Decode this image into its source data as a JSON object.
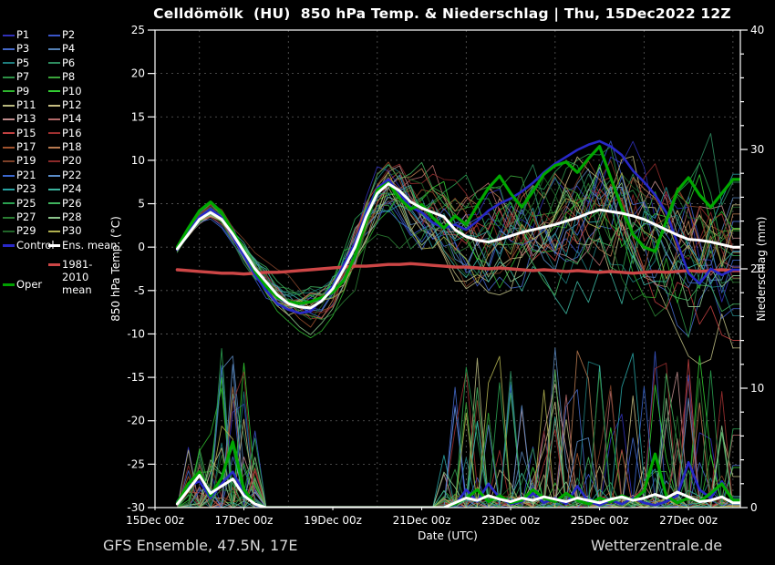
{
  "title": "Celldömölk  (HU)  850 hPa Temp. & Niederschlag | Thu, 15Dec2022 12Z",
  "footer": {
    "left": "GFS Ensemble, 47.5N, 17E",
    "right": "Wetterzentrale.de"
  },
  "legend": {
    "members": [
      {
        "label": "P1",
        "color": "#3030b8"
      },
      {
        "label": "P2",
        "color": "#3a55c8"
      },
      {
        "label": "P3",
        "color": "#4468c8"
      },
      {
        "label": "P4",
        "color": "#5480b4"
      },
      {
        "label": "P5",
        "color": "#1e7d7d"
      },
      {
        "label": "P6",
        "color": "#2e8c5f"
      },
      {
        "label": "P7",
        "color": "#2d9146"
      },
      {
        "label": "P8",
        "color": "#3aa43a"
      },
      {
        "label": "P9",
        "color": "#2eb42e"
      },
      {
        "label": "P10",
        "color": "#32cd32"
      },
      {
        "label": "P11",
        "color": "#b8b87e"
      },
      {
        "label": "P12",
        "color": "#c7bd82"
      },
      {
        "label": "P13",
        "color": "#c08c8c"
      },
      {
        "label": "P14",
        "color": "#b46a6a"
      },
      {
        "label": "P15",
        "color": "#c04040"
      },
      {
        "label": "P16",
        "color": "#9e3030"
      },
      {
        "label": "P17",
        "color": "#a0522d"
      },
      {
        "label": "P18",
        "color": "#b87a50"
      },
      {
        "label": "P19",
        "color": "#7d4028"
      },
      {
        "label": "P20",
        "color": "#8c2a2a"
      },
      {
        "label": "P21",
        "color": "#3a66cc"
      },
      {
        "label": "P22",
        "color": "#5a8cc8"
      },
      {
        "label": "P23",
        "color": "#28a2a2"
      },
      {
        "label": "P24",
        "color": "#3cb49e"
      },
      {
        "label": "P25",
        "color": "#2aa050"
      },
      {
        "label": "P26",
        "color": "#40b45e"
      },
      {
        "label": "P27",
        "color": "#2a7d32"
      },
      {
        "label": "P28",
        "color": "#8cc48c"
      },
      {
        "label": "P29",
        "color": "#206428"
      },
      {
        "label": "P30",
        "color": "#b0b050"
      }
    ],
    "control": {
      "label": "Control",
      "color": "#2828c8"
    },
    "ens_mean": {
      "label": "Ens. mean",
      "color": "#ffffff"
    },
    "oper": {
      "label": "Oper",
      "color": "#00a000"
    },
    "clim": {
      "label": "1981-2010 mean",
      "color": "#cd4646"
    }
  },
  "chart_data": {
    "type": "line",
    "title": "Celldömölk  (HU)  850 hPa Temp. & Niederschlag | Thu, 15Dec2022 12Z",
    "xlabel": "Date (UTC)",
    "ylabel_left": "850 hPa Temp. (°C)",
    "ylabel_right": "Niederschlag (mm)",
    "x_axis": {
      "tick_labels": [
        "15Dec 00z",
        "17Dec 00z",
        "19Dec 00z",
        "21Dec 00z",
        "23Dec 00z",
        "25Dec 00z",
        "27Dec 00z"
      ],
      "tick_hours": [
        0,
        48,
        96,
        144,
        192,
        240,
        288
      ],
      "grid_hours": [
        24,
        72,
        120,
        168,
        216,
        264,
        312
      ],
      "range_hours": [
        0,
        316
      ]
    },
    "y_left": {
      "ticks": [
        25,
        20,
        15,
        10,
        5,
        0,
        -5,
        -10,
        -15,
        -20,
        -25,
        -30
      ],
      "range": [
        -30,
        25
      ],
      "grid_ticks": [
        20,
        15,
        10,
        5,
        0,
        -5,
        -10,
        -15,
        -20,
        -25
      ]
    },
    "y_right": {
      "ticks": [
        0,
        10,
        20,
        30,
        40
      ],
      "minor_step": 2,
      "range": [
        0,
        40
      ]
    },
    "time_hours": [
      12,
      18,
      24,
      30,
      36,
      42,
      48,
      54,
      60,
      66,
      72,
      78,
      84,
      90,
      96,
      102,
      108,
      114,
      120,
      126,
      132,
      138,
      144,
      150,
      156,
      162,
      168,
      174,
      180,
      186,
      192,
      198,
      204,
      210,
      216,
      222,
      228,
      234,
      240,
      246,
      252,
      258,
      264,
      270,
      276,
      282,
      288,
      294,
      300,
      306,
      312
    ],
    "series": [
      {
        "name": "Ens. mean",
        "color": "#ffffff",
        "width": 3,
        "temp": [
          -0.2,
          1.5,
          3.2,
          4.0,
          3.2,
          1.5,
          -0.5,
          -2.5,
          -4.0,
          -5.5,
          -6.5,
          -6.9,
          -7.0,
          -6.2,
          -4.8,
          -2.5,
          0.0,
          3.5,
          6.2,
          7.3,
          6.5,
          5.2,
          4.5,
          4.0,
          3.5,
          2.0,
          1.2,
          0.8,
          0.6,
          0.9,
          1.3,
          1.7,
          2.0,
          2.3,
          2.6,
          3.0,
          3.4,
          3.9,
          4.3,
          4.1,
          3.9,
          3.6,
          3.2,
          2.6,
          2.0,
          1.4,
          0.9,
          0.8,
          0.6,
          0.3,
          0.0
        ],
        "precip": [
          0.3,
          1.5,
          2.7,
          1.2,
          1.8,
          2.4,
          1.0,
          0.3,
          0,
          0,
          0,
          0,
          0,
          0,
          0,
          0,
          0,
          0,
          0,
          0,
          0,
          0,
          0,
          0,
          0,
          0.4,
          0.8,
          0.6,
          1.0,
          0.7,
          0.5,
          0.8,
          0.6,
          0.9,
          0.7,
          0.5,
          0.8,
          0.6,
          0.4,
          0.7,
          0.9,
          0.6,
          0.8,
          1.1,
          0.8,
          1.3,
          0.9,
          0.5,
          0.6,
          0.9,
          0.4
        ]
      },
      {
        "name": "Control",
        "color": "#2828c8",
        "width": 2.6,
        "temp": [
          -0.3,
          1.8,
          3.5,
          4.4,
          3.4,
          1.2,
          -1.0,
          -3.2,
          -5.0,
          -6.5,
          -7.2,
          -7.6,
          -7.4,
          -6.0,
          -4.5,
          -2.0,
          0.5,
          4.0,
          6.8,
          7.8,
          6.2,
          4.6,
          4.0,
          2.8,
          2.2,
          2.6,
          2.0,
          3.0,
          4.2,
          5.0,
          5.6,
          6.4,
          7.4,
          8.6,
          9.6,
          10.4,
          11.2,
          11.8,
          12.2,
          11.6,
          10.6,
          8.8,
          7.5,
          6.0,
          4.0,
          0.5,
          -3.0,
          -4.2,
          -2.5,
          -3.2,
          -2.6
        ],
        "precip": [
          0.5,
          1.8,
          2.2,
          0.8,
          2.0,
          3.0,
          1.2,
          0.2,
          0,
          0,
          0,
          0,
          0,
          0,
          0,
          0,
          0,
          0,
          0,
          0,
          0,
          0,
          0,
          0,
          0,
          0.2,
          1.5,
          0.5,
          2.0,
          0.8,
          0.3,
          0.5,
          1.2,
          0.4,
          0.8,
          0.3,
          1.8,
          0.5,
          0.2,
          0.6,
          0.3,
          0.8,
          0.4,
          0.2,
          0.5,
          1.0,
          3.8,
          1.5,
          0.8,
          2.2,
          0.5
        ]
      },
      {
        "name": "Oper",
        "color": "#00a800",
        "width": 3.2,
        "temp": [
          0.0,
          2.2,
          4.2,
          5.2,
          4.0,
          1.8,
          -0.3,
          -2.8,
          -4.5,
          -5.8,
          -6.3,
          -6.5,
          -6.3,
          -5.8,
          -5.2,
          -3.8,
          -1.0,
          3.0,
          6.6,
          7.4,
          5.6,
          4.4,
          4.9,
          3.4,
          2.2,
          3.6,
          2.6,
          4.8,
          6.8,
          8.2,
          6.2,
          4.6,
          6.4,
          8.4,
          9.4,
          9.8,
          8.6,
          10.2,
          11.6,
          8.0,
          4.5,
          1.5,
          0.0,
          -0.5,
          3.0,
          6.5,
          8.0,
          6.0,
          4.6,
          6.2,
          7.8
        ],
        "precip": [
          0.4,
          2.0,
          3.0,
          1.0,
          2.5,
          5.5,
          1.5,
          0.3,
          0,
          0,
          0,
          0,
          0,
          0,
          0,
          0,
          0,
          0,
          0,
          0,
          0,
          0,
          0,
          0,
          0,
          0.3,
          0.8,
          1.5,
          0.5,
          1.0,
          0.4,
          0.6,
          1.5,
          0.8,
          0.5,
          1.2,
          0.6,
          0.3,
          0.8,
          0.5,
          1.0,
          0.6,
          1.4,
          4.5,
          1.0,
          0.4,
          0.8,
          0.5,
          1.2,
          2.0,
          0.6
        ]
      },
      {
        "name": "1981-2010 mean",
        "color": "#cd4646",
        "width": 3.4,
        "temp": [
          -2.6,
          -2.7,
          -2.8,
          -2.9,
          -3.0,
          -3.0,
          -3.1,
          -3.0,
          -2.9,
          -2.9,
          -2.8,
          -2.7,
          -2.6,
          -2.5,
          -2.4,
          -2.3,
          -2.2,
          -2.2,
          -2.1,
          -2.0,
          -2.0,
          -1.9,
          -2.0,
          -2.1,
          -2.2,
          -2.3,
          -2.3,
          -2.4,
          -2.5,
          -2.4,
          -2.5,
          -2.6,
          -2.7,
          -2.6,
          -2.7,
          -2.8,
          -2.7,
          -2.8,
          -2.9,
          -2.8,
          -2.9,
          -3.0,
          -2.9,
          -2.8,
          -2.9,
          -2.8,
          -2.7,
          -2.8,
          -2.7,
          -2.6,
          -2.7
        ]
      }
    ],
    "members": {
      "count": 30,
      "spread_envelope": [
        0.3,
        0.5,
        0.6,
        0.7,
        0.8,
        0.9,
        1.0,
        1.1,
        1.2,
        1.3,
        1.5,
        1.6,
        1.8,
        1.9,
        2.0,
        2.2,
        2.4,
        2.6,
        2.8,
        3.0,
        3.2,
        3.4,
        3.5,
        3.7,
        3.8,
        4.0,
        4.2,
        4.4,
        4.5,
        4.7,
        4.8,
        5.0,
        5.2,
        5.4,
        5.5,
        5.7,
        5.8,
        6.0,
        6.2,
        6.3,
        6.4,
        6.5,
        6.6,
        6.7,
        6.8,
        6.9,
        7.0,
        7.0,
        7.1,
        7.1,
        7.2
      ],
      "precip_windows": [
        [
          18,
          54
        ],
        [
          156,
          312
        ]
      ],
      "precip_max_mm": 13.5
    }
  }
}
